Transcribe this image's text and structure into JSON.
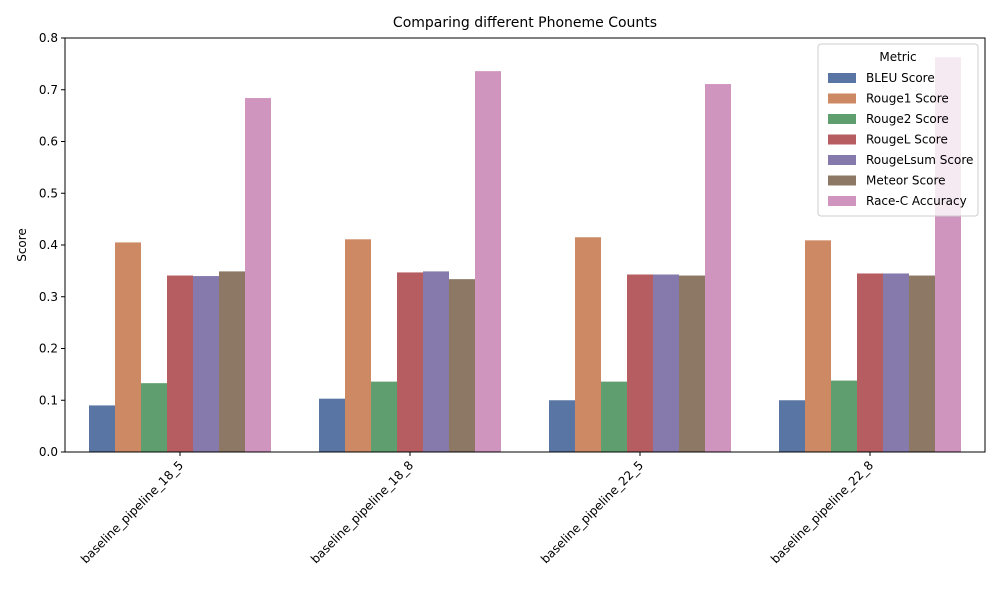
{
  "chart_data": {
    "type": "bar",
    "title": "Comparing different Phoneme Counts",
    "xlabel": "",
    "ylabel": "Score",
    "ylim": [
      0,
      0.8
    ],
    "yticks": [
      "0.0",
      "0.1",
      "0.2",
      "0.3",
      "0.4",
      "0.5",
      "0.6",
      "0.7",
      "0.8"
    ],
    "grid": false,
    "legend": {
      "title": "Metric",
      "placement": "top-right"
    },
    "categories": [
      "baseline_pipeline_18_5",
      "baseline_pipeline_18_8",
      "baseline_pipeline_22_5",
      "baseline_pipeline_22_8"
    ],
    "series": [
      {
        "name": "BLEU Score",
        "color": "#5975a4",
        "values": [
          0.09,
          0.103,
          0.1,
          0.1
        ]
      },
      {
        "name": "Rouge1 Score",
        "color": "#cc8963",
        "values": [
          0.405,
          0.411,
          0.415,
          0.409
        ]
      },
      {
        "name": "Rouge2 Score",
        "color": "#5f9e6e",
        "values": [
          0.133,
          0.136,
          0.136,
          0.138
        ]
      },
      {
        "name": "RougeL Score",
        "color": "#b55d60",
        "values": [
          0.341,
          0.347,
          0.343,
          0.345
        ]
      },
      {
        "name": "RougeLsum Score",
        "color": "#857aab",
        "values": [
          0.34,
          0.349,
          0.343,
          0.345
        ]
      },
      {
        "name": "Meteor Score",
        "color": "#8d7866",
        "values": [
          0.349,
          0.334,
          0.341,
          0.341
        ]
      },
      {
        "name": "Race-C Accuracy",
        "color": "#d095bf",
        "values": [
          0.684,
          0.736,
          0.711,
          0.763
        ]
      }
    ]
  }
}
